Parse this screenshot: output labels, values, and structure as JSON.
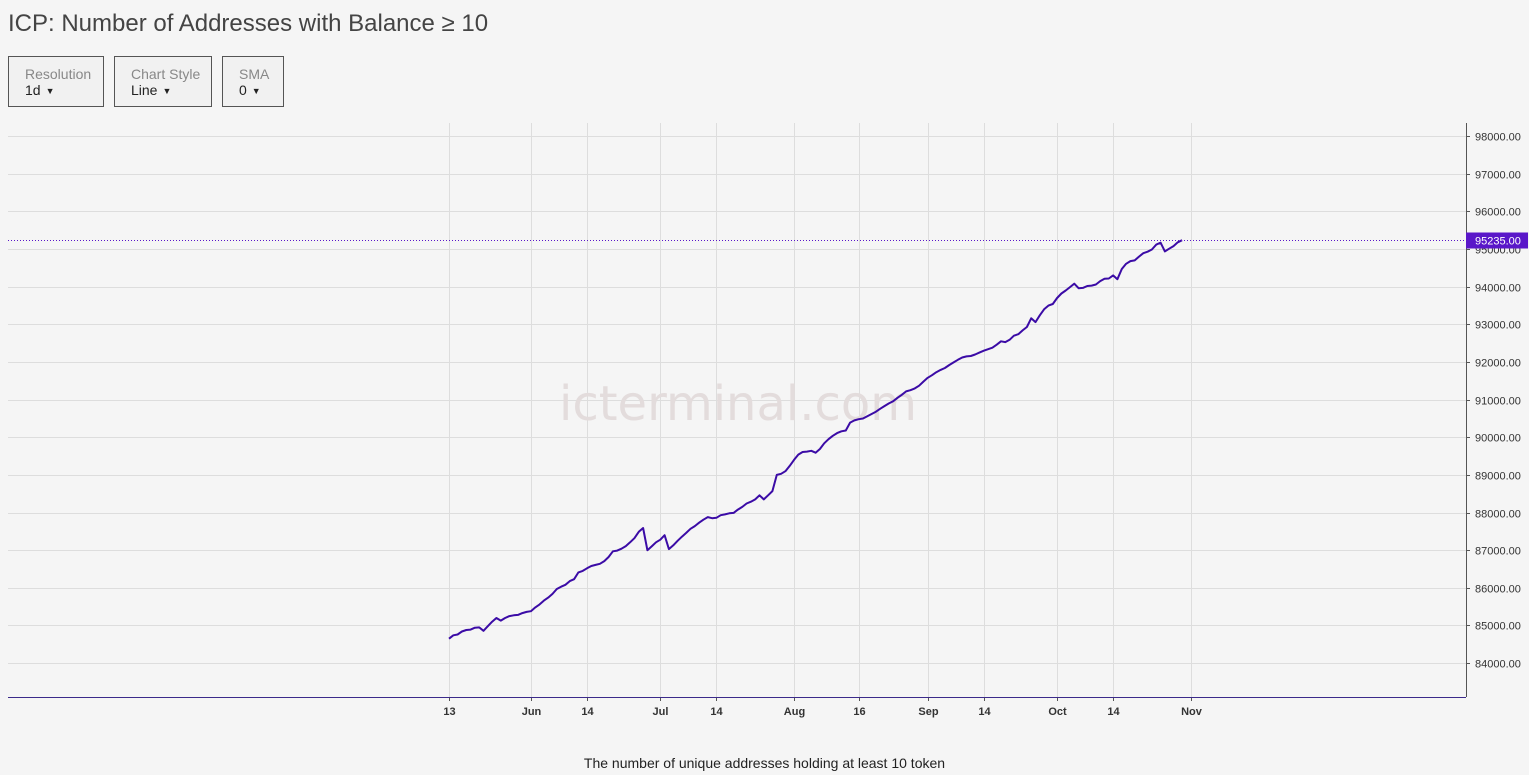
{
  "title": "ICP: Number of Addresses with Balance ≥ 10",
  "controls": {
    "resolution": {
      "label": "Resolution",
      "value": "1d"
    },
    "chart_style": {
      "label": "Chart Style",
      "value": "Line"
    },
    "sma": {
      "label": "SMA",
      "value": "0"
    }
  },
  "watermark": "icterminal.com",
  "caption": "The number of unique addresses holding at least 10 token",
  "colors": {
    "line": "#3b0ba6",
    "last_value_badge": "#5a17c9",
    "grid": "#dddddd",
    "background": "#f5f5f5"
  },
  "chart_data": {
    "type": "line",
    "title": "ICP: Number of Addresses with Balance ≥ 10",
    "xlabel": "",
    "ylabel": "",
    "start_date": "2021-05-13",
    "end_date": "2021-11-03",
    "x_ticks": [
      {
        "label": "13",
        "date": "2021-05-13"
      },
      {
        "label": "Jun",
        "date": "2021-06-01"
      },
      {
        "label": "14",
        "date": "2021-06-14"
      },
      {
        "label": "Jul",
        "date": "2021-07-01"
      },
      {
        "label": "14",
        "date": "2021-07-14"
      },
      {
        "label": "Aug",
        "date": "2021-08-01"
      },
      {
        "label": "16",
        "date": "2021-08-16"
      },
      {
        "label": "Sep",
        "date": "2021-09-01"
      },
      {
        "label": "14",
        "date": "2021-09-14"
      },
      {
        "label": "Oct",
        "date": "2021-10-01"
      },
      {
        "label": "14",
        "date": "2021-10-14"
      },
      {
        "label": "Nov",
        "date": "2021-11-01"
      }
    ],
    "y_ticks": [
      84000,
      85000,
      86000,
      87000,
      88000,
      89000,
      90000,
      91000,
      92000,
      93000,
      94000,
      95000,
      96000,
      97000,
      98000
    ],
    "ylim": [
      83100,
      98350
    ],
    "last_value": 95235.0,
    "last_value_label": "95235.00",
    "grid": true,
    "legend": "none",
    "series": [
      {
        "values": [
          84650,
          84740,
          84760,
          84840,
          84880,
          84890,
          84940,
          84950,
          84860,
          84980,
          85100,
          85200,
          85130,
          85200,
          85250,
          85270,
          85280,
          85330,
          85360,
          85380,
          85480,
          85560,
          85660,
          85740,
          85840,
          85970,
          86030,
          86080,
          86180,
          86230,
          86410,
          86450,
          86520,
          86580,
          86610,
          86640,
          86710,
          86820,
          86970,
          86990,
          87040,
          87110,
          87210,
          87320,
          87490,
          87590,
          87000,
          87100,
          87210,
          87280,
          87400,
          87030,
          87130,
          87250,
          87360,
          87460,
          87570,
          87640,
          87730,
          87810,
          87880,
          87850,
          87860,
          87930,
          87950,
          87980,
          87990,
          88080,
          88150,
          88240,
          88290,
          88350,
          88460,
          88350,
          88460,
          88570,
          89000,
          89030,
          89100,
          89240,
          89400,
          89540,
          89610,
          89620,
          89640,
          89590,
          89690,
          89840,
          89950,
          90040,
          90110,
          90160,
          90180,
          90390,
          90450,
          90480,
          90500,
          90560,
          90620,
          90680,
          90760,
          90830,
          90900,
          90960,
          91050,
          91130,
          91220,
          91250,
          91300,
          91370,
          91480,
          91580,
          91650,
          91730,
          91790,
          91840,
          91920,
          91990,
          92060,
          92120,
          92150,
          92160,
          92200,
          92250,
          92300,
          92340,
          92380,
          92460,
          92550,
          92530,
          92590,
          92700,
          92740,
          92840,
          92930,
          93160,
          93060,
          93240,
          93400,
          93500,
          93540,
          93700,
          93820,
          93900,
          93990,
          94080,
          93960,
          93970,
          94020,
          94030,
          94060,
          94150,
          94210,
          94220,
          94300,
          94200,
          94470,
          94610,
          94680,
          94700,
          94800,
          94890,
          94930,
          94990,
          95120,
          95170,
          94940,
          95010,
          95080,
          95180,
          95235
        ]
      }
    ]
  }
}
